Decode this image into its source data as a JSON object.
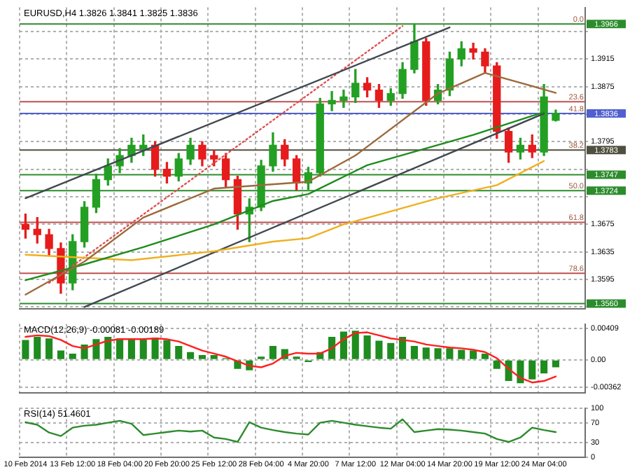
{
  "chart_data": [
    {
      "type": "candlestick",
      "title": "EURUSD,H4 1.3826 1.3841 1.3825 1.3836",
      "categories": [
        null,
        null,
        null,
        null,
        null,
        null,
        null,
        null,
        null,
        null,
        null,
        null,
        null,
        null,
        null,
        null,
        null,
        null,
        null,
        null,
        null,
        null,
        null,
        null,
        null,
        null,
        null,
        null,
        null,
        null,
        null,
        null,
        null,
        null,
        null,
        null,
        null,
        null,
        null,
        null,
        null,
        null,
        null,
        null,
        null,
        null
      ],
      "ohlc": [
        [
          1.3675,
          1.369,
          1.3655,
          1.3668
        ],
        [
          1.3668,
          1.3685,
          1.3648,
          1.366
        ],
        [
          1.366,
          1.3668,
          1.363,
          1.364
        ],
        [
          1.364,
          1.3648,
          1.3575,
          1.359
        ],
        [
          1.359,
          1.366,
          1.358,
          1.365
        ],
        [
          1.365,
          1.3708,
          1.3642,
          1.37
        ],
        [
          1.37,
          1.3748,
          1.3692,
          1.374
        ],
        [
          1.374,
          1.377,
          1.3732,
          1.376
        ],
        [
          1.376,
          1.3785,
          1.375,
          1.3775
        ],
        [
          1.3775,
          1.38,
          1.3765,
          1.379
        ],
        [
          1.3785,
          1.3805,
          1.3775,
          1.379
        ],
        [
          1.379,
          1.3795,
          1.3745,
          1.3755
        ],
        [
          1.3755,
          1.3765,
          1.3735,
          1.3745
        ],
        [
          1.3745,
          1.3778,
          1.3738,
          1.377
        ],
        [
          1.377,
          1.38,
          1.3762,
          1.379
        ],
        [
          1.379,
          1.3795,
          1.376,
          1.377
        ],
        [
          1.3775,
          1.3782,
          1.376,
          1.377
        ],
        [
          1.377,
          1.3778,
          1.373,
          1.374
        ],
        [
          1.374,
          1.3745,
          1.3668,
          1.369
        ],
        [
          1.369,
          1.3712,
          1.365,
          1.37
        ],
        [
          1.37,
          1.3768,
          1.3695,
          1.376
        ],
        [
          1.376,
          1.3808,
          1.3752,
          1.379
        ],
        [
          1.379,
          1.3798,
          1.376,
          1.377
        ],
        [
          1.377,
          1.3775,
          1.3725,
          1.3735
        ],
        [
          1.3735,
          1.3758,
          1.3726,
          1.375
        ],
        [
          1.375,
          1.3858,
          1.3745,
          1.385
        ],
        [
          1.385,
          1.3868,
          1.384,
          1.3855
        ],
        [
          1.3855,
          1.387,
          1.3845,
          1.386
        ],
        [
          1.386,
          1.39,
          1.3852,
          1.388
        ],
        [
          1.388,
          1.3888,
          1.386,
          1.387
        ],
        [
          1.387,
          1.3878,
          1.3845,
          1.3855
        ],
        [
          1.3855,
          1.3872,
          1.3848,
          1.3865
        ],
        [
          1.3865,
          1.391,
          1.3858,
          1.39
        ],
        [
          1.39,
          1.3966,
          1.3895,
          1.394
        ],
        [
          1.394,
          1.3945,
          1.3848,
          1.3855
        ],
        [
          1.3855,
          1.3878,
          1.385,
          1.387
        ],
        [
          1.387,
          1.3925,
          1.3862,
          1.3915
        ],
        [
          1.3915,
          1.394,
          1.3905,
          1.393
        ],
        [
          1.393,
          1.3938,
          1.3915,
          1.3925
        ],
        [
          1.3925,
          1.393,
          1.3895,
          1.3905
        ],
        [
          1.3905,
          1.391,
          1.38,
          1.381
        ],
        [
          1.381,
          1.3815,
          1.3765,
          1.378
        ],
        [
          1.378,
          1.38,
          1.377,
          1.379
        ],
        [
          1.379,
          1.3805,
          1.3772,
          1.378
        ],
        [
          1.378,
          1.3878,
          1.3775,
          1.386
        ],
        [
          1.3826,
          1.3841,
          1.3825,
          1.3836
        ]
      ],
      "colors": [
        "#e61c1c",
        "#e61c1c",
        "#e61c1c",
        "#e61c1c",
        "#23a023",
        "#23a023",
        "#23a023",
        "#23a023",
        "#23a023",
        "#23a023",
        "#23a023",
        "#e61c1c",
        "#e61c1c",
        "#23a023",
        "#23a023",
        "#e61c1c",
        "#e61c1c",
        "#e61c1c",
        "#e61c1c",
        "#23a023",
        "#23a023",
        "#23a023",
        "#e61c1c",
        "#e61c1c",
        "#23a023",
        "#23a023",
        "#23a023",
        "#23a023",
        "#23a023",
        "#e61c1c",
        "#e61c1c",
        "#23a023",
        "#23a023",
        "#23a023",
        "#e61c1c",
        "#23a023",
        "#23a023",
        "#23a023",
        "#e61c1c",
        "#e61c1c",
        "#e61c1c",
        "#e61c1c",
        "#23a023",
        "#e61c1c",
        "#23a023",
        "#23a023"
      ],
      "series": [
        {
          "type": "line",
          "color": "#9c6a3c",
          "values": [
            1.3573,
            null,
            null,
            null,
            null,
            1.3621,
            null,
            null,
            null,
            null,
            1.3685,
            null,
            null,
            null,
            null,
            null,
            1.3727,
            null,
            null,
            null,
            null,
            null,
            null,
            null,
            1.3737,
            null,
            null,
            null,
            1.3775,
            null,
            null,
            null,
            null,
            null,
            null,
            1.3865,
            null,
            null,
            null,
            1.3895,
            null,
            null,
            null,
            null,
            null,
            1.3866
          ]
        },
        {
          "type": "line",
          "color": "#1e8c1e",
          "values": [
            1.3594,
            null,
            null,
            null,
            null,
            1.3617,
            null,
            null,
            null,
            null,
            1.3642,
            null,
            null,
            null,
            null,
            null,
            1.3675,
            null,
            null,
            null,
            null,
            1.3709,
            null,
            null,
            1.3719,
            null,
            null,
            null,
            null,
            1.3761,
            null,
            null,
            null,
            null,
            null,
            null,
            null,
            null,
            1.3805,
            null,
            null,
            null,
            null,
            null,
            1.3838,
            null
          ]
        },
        {
          "type": "line",
          "color": "#f0b020",
          "values": [
            1.3631,
            null,
            null,
            null,
            null,
            null,
            null,
            null,
            null,
            1.3623,
            null,
            null,
            null,
            null,
            null,
            null,
            1.3636,
            null,
            null,
            null,
            null,
            1.365,
            null,
            null,
            1.3655,
            null,
            null,
            1.3675,
            null,
            null,
            null,
            null,
            null,
            null,
            null,
            1.3713,
            null,
            null,
            null,
            null,
            1.3732,
            null,
            null,
            null,
            1.3767,
            null
          ]
        },
        {
          "type": "line",
          "color": "#404850",
          "values": [
            1.3713,
            null,
            null,
            null,
            null,
            null,
            null,
            null,
            null,
            null,
            null,
            null,
            null,
            null,
            null,
            null,
            null,
            null,
            null,
            null,
            null,
            null,
            null,
            null,
            null,
            null,
            null,
            null,
            null,
            null,
            null,
            null,
            null,
            null,
            null,
            null,
            1.3961,
            null,
            null,
            null,
            null,
            null,
            null,
            null,
            null,
            null
          ]
        },
        {
          "type": "line",
          "color": "#404850",
          "values": [
            null,
            null,
            null,
            null,
            null,
            1.3555,
            null,
            null,
            null,
            null,
            null,
            null,
            null,
            null,
            null,
            null,
            null,
            null,
            null,
            null,
            null,
            null,
            null,
            null,
            null,
            null,
            null,
            null,
            null,
            null,
            null,
            null,
            null,
            null,
            null,
            null,
            null,
            null,
            null,
            null,
            null,
            null,
            null,
            null,
            1.3836,
            null
          ]
        },
        {
          "type": "line",
          "color": "#e05050",
          "line_style": "dotted",
          "values": [
            null,
            null,
            1.359,
            null,
            null,
            null,
            null,
            null,
            null,
            null,
            null,
            null,
            null,
            null,
            null,
            null,
            null,
            null,
            null,
            null,
            null,
            null,
            null,
            null,
            null,
            null,
            null,
            null,
            null,
            null,
            null,
            null,
            1.3963,
            null,
            null,
            null,
            null,
            null,
            null,
            null,
            null,
            null,
            null,
            null,
            null,
            null
          ]
        }
      ],
      "ref_lines": [
        {
          "axis": "y",
          "value": 1.3966,
          "label": "1.3966",
          "color": "#2c8c2c"
        },
        {
          "axis": "y",
          "value": 1.3853,
          "label": null,
          "color": "#c05050"
        },
        {
          "axis": "y",
          "value": 1.3836,
          "label": "1.3836",
          "color": "#5060d0"
        },
        {
          "axis": "y",
          "value": 1.3783,
          "label": "1.3783",
          "color": "#505040"
        },
        {
          "axis": "y",
          "value": 1.3747,
          "label": "1.3747",
          "color": "#2c8c2c"
        },
        {
          "axis": "y",
          "value": 1.3724,
          "label": "1.3724",
          "color": "#2c8c2c"
        },
        {
          "axis": "y",
          "value": 1.3678,
          "label": null,
          "color": "#c05050"
        },
        {
          "axis": "y",
          "value": 1.3604,
          "label": null,
          "color": "#c05050"
        },
        {
          "axis": "y",
          "value": 1.356,
          "label": "1.3560",
          "color": "#2c8c2c"
        }
      ],
      "annotations": [
        {
          "text": "0.0",
          "y": 1.3966
        },
        {
          "text": "23.6",
          "y": 1.3853
        },
        {
          "text": "41.8",
          "y": 1.3836
        },
        {
          "text": "38.2",
          "y": 1.3783
        },
        {
          "text": "50.0",
          "y": 1.3724
        },
        {
          "text": "61.8",
          "y": 1.3678
        },
        {
          "text": "78.6",
          "y": 1.3604
        }
      ],
      "ylim": [
        1.3552,
        1.399
      ],
      "yticks": [
        {
          "value": 1.3955,
          "label": null
        },
        1.3915,
        1.3875,
        {
          "value": 1.3835,
          "label": null
        },
        1.3795,
        {
          "value": 1.3755,
          "label": null
        },
        {
          "value": 1.3715,
          "label": null
        },
        1.3675,
        1.3635,
        1.3595,
        {
          "value": 1.3555,
          "label": null
        }
      ],
      "tick_labels": "y",
      "grid": true
    },
    {
      "type": "bar",
      "title": "MACD(12,26,9) -0.00081 -0.00189",
      "categories": [
        null,
        null,
        null,
        null,
        null,
        null,
        null,
        null,
        null,
        null,
        null,
        null,
        null,
        null,
        null,
        null,
        null,
        null,
        null,
        null,
        null,
        null,
        null,
        null,
        null,
        null,
        null,
        null,
        null,
        null,
        null,
        null,
        null,
        null,
        null,
        null,
        null,
        null,
        null,
        null,
        null,
        null,
        null,
        null,
        null,
        null
      ],
      "series": [
        {
          "type": "bar",
          "color": "#1e8c1e",
          "values": [
            0.0026,
            0.003,
            0.0028,
            0.0012,
            0.0008,
            0.002,
            0.0027,
            0.003,
            0.0028,
            0.0027,
            0.0028,
            0.0029,
            0.0026,
            0.0018,
            0.001,
            0.0006,
            0.0006,
            0.0002,
            -0.0012,
            -0.0014,
            0.0004,
            0.0018,
            0.0014,
            0.0004,
            -0.0003,
            0.001,
            0.003,
            0.0037,
            0.0038,
            0.0032,
            0.0025,
            0.0022,
            0.003,
            0.0018,
            0.0016,
            0.0015,
            0.0015,
            0.0013,
            0.0012,
            0.0008,
            -0.0012,
            -0.0028,
            -0.0031,
            -0.0026,
            -0.0018,
            -0.001
          ]
        },
        {
          "type": "line",
          "color": "#ff2020",
          "values": [
            0.003,
            0.0032,
            0.0031,
            0.0026,
            0.0018,
            0.0015,
            0.002,
            0.0025,
            0.0027,
            0.0027,
            0.0027,
            0.0028,
            0.0027,
            0.0024,
            0.0018,
            0.0012,
            0.0008,
            0.0004,
            -0.0002,
            -0.0008,
            -0.001,
            -0.0005,
            0.0005,
            0.0009,
            0.0008,
            0.0008,
            0.0015,
            0.0027,
            0.0035,
            0.0036,
            0.0032,
            0.0028,
            0.0026,
            0.0024,
            0.002,
            0.0018,
            0.0016,
            0.0015,
            0.0013,
            0.001,
            0.0002,
            -0.0012,
            -0.0024,
            -0.003,
            -0.0028,
            -0.0022
          ]
        }
      ],
      "ylim": [
        -0.0044,
        0.0047
      ],
      "yticks": [
        0.00409,
        {
          "value": 0,
          "label": "0.00"
        },
        -0.00362
      ],
      "tick_labels": "y",
      "grid": true
    },
    {
      "type": "line",
      "title": "RSI(14) 51.4601",
      "categories": [
        "10 Feb 2014",
        null,
        null,
        null,
        "13 Feb 12:00",
        null,
        null,
        null,
        "18 Feb 04:00",
        null,
        null,
        null,
        "20 Feb 20:00",
        null,
        null,
        null,
        "25 Feb 12:00",
        null,
        null,
        null,
        "28 Feb 04:00",
        null,
        null,
        null,
        "4 Mar 20:00",
        null,
        null,
        null,
        "7 Mar 12:00",
        null,
        null,
        null,
        "12 Mar 04:00",
        null,
        null,
        null,
        "14 Mar 20:00",
        null,
        null,
        null,
        "19 Mar 12:00",
        null,
        null,
        null,
        "24 Mar 04:00",
        null
      ],
      "series": [
        {
          "color": "#2e8b2e",
          "values": [
            71,
            66,
            50,
            43,
            60,
            64,
            66,
            70,
            74,
            68,
            45,
            48,
            51,
            54,
            52,
            54,
            40,
            37,
            31,
            71,
            60,
            55,
            51,
            48,
            46,
            70,
            74,
            70,
            66,
            63,
            60,
            58,
            77,
            51,
            54,
            57,
            56,
            54,
            51,
            48,
            37,
            31,
            40,
            60,
            55,
            51
          ]
        }
      ],
      "ylim": [
        0,
        100
      ],
      "yticks": [
        100,
        70,
        30,
        0
      ],
      "grid": true
    }
  ]
}
